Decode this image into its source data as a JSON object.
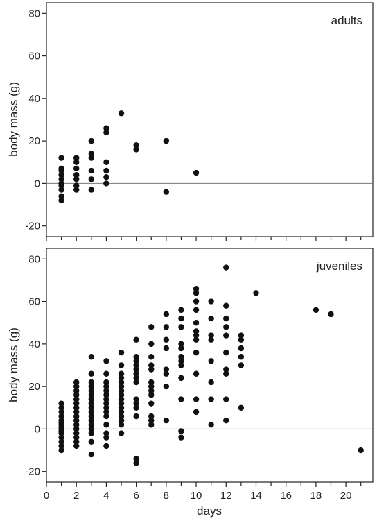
{
  "chart_data": [
    {
      "type": "scatter",
      "label": "adults",
      "ylabel": "body mass (g)",
      "xlabel": "",
      "ylim": [
        -25,
        85
      ],
      "xlim": [
        0,
        21.8
      ],
      "yticks": [
        "-20",
        "0",
        "20",
        "40",
        "60",
        "80"
      ],
      "xtick_labels_shown": false,
      "reference_line_y": 0,
      "points": [
        [
          1,
          12
        ],
        [
          1,
          7
        ],
        [
          1,
          6
        ],
        [
          1,
          4
        ],
        [
          1,
          2
        ],
        [
          1,
          0
        ],
        [
          1,
          -1
        ],
        [
          1,
          -3
        ],
        [
          1,
          -6
        ],
        [
          1,
          -8
        ],
        [
          2,
          12
        ],
        [
          2,
          10
        ],
        [
          2,
          7
        ],
        [
          2,
          4
        ],
        [
          2,
          2
        ],
        [
          2,
          -1
        ],
        [
          2,
          -3
        ],
        [
          3,
          20
        ],
        [
          3,
          14
        ],
        [
          3,
          12
        ],
        [
          3,
          6
        ],
        [
          3,
          2
        ],
        [
          3,
          -3
        ],
        [
          4,
          26
        ],
        [
          4,
          24
        ],
        [
          4,
          10
        ],
        [
          4,
          6
        ],
        [
          4,
          3
        ],
        [
          4,
          0
        ],
        [
          5,
          33
        ],
        [
          6,
          18
        ],
        [
          6,
          16
        ],
        [
          8,
          20
        ],
        [
          8,
          -4
        ],
        [
          10,
          5
        ]
      ]
    },
    {
      "type": "scatter",
      "label": "juveniles",
      "ylabel": "body mass (g)",
      "xlabel": "days",
      "ylim": [
        -25,
        85
      ],
      "xlim": [
        0,
        21.8
      ],
      "yticks": [
        "-20",
        "0",
        "20",
        "40",
        "60",
        "80"
      ],
      "xticks": [
        "0",
        "2",
        "4",
        "6",
        "8",
        "10",
        "12",
        "14",
        "16",
        "18",
        "20"
      ],
      "reference_line_y": 0,
      "points": [
        [
          1,
          12
        ],
        [
          1,
          10
        ],
        [
          1,
          8
        ],
        [
          1,
          6
        ],
        [
          1,
          4
        ],
        [
          1,
          3
        ],
        [
          1,
          2
        ],
        [
          1,
          1
        ],
        [
          1,
          0
        ],
        [
          1,
          -1
        ],
        [
          1,
          -2
        ],
        [
          1,
          -4
        ],
        [
          1,
          -6
        ],
        [
          1,
          -8
        ],
        [
          1,
          -10
        ],
        [
          2,
          22
        ],
        [
          2,
          20
        ],
        [
          2,
          18
        ],
        [
          2,
          16
        ],
        [
          2,
          14
        ],
        [
          2,
          12
        ],
        [
          2,
          10
        ],
        [
          2,
          8
        ],
        [
          2,
          6
        ],
        [
          2,
          4
        ],
        [
          2,
          2
        ],
        [
          2,
          0
        ],
        [
          2,
          -2
        ],
        [
          2,
          -4
        ],
        [
          2,
          -6
        ],
        [
          2,
          -8
        ],
        [
          3,
          34
        ],
        [
          3,
          26
        ],
        [
          3,
          22
        ],
        [
          3,
          20
        ],
        [
          3,
          18
        ],
        [
          3,
          16
        ],
        [
          3,
          14
        ],
        [
          3,
          12
        ],
        [
          3,
          10
        ],
        [
          3,
          8
        ],
        [
          3,
          6
        ],
        [
          3,
          4
        ],
        [
          3,
          2
        ],
        [
          3,
          0
        ],
        [
          3,
          -2
        ],
        [
          3,
          -6
        ],
        [
          3,
          -12
        ],
        [
          4,
          32
        ],
        [
          4,
          26
        ],
        [
          4,
          22
        ],
        [
          4,
          20
        ],
        [
          4,
          18
        ],
        [
          4,
          16
        ],
        [
          4,
          14
        ],
        [
          4,
          12
        ],
        [
          4,
          10
        ],
        [
          4,
          8
        ],
        [
          4,
          6
        ],
        [
          4,
          2
        ],
        [
          4,
          -2
        ],
        [
          4,
          -4
        ],
        [
          4,
          -8
        ],
        [
          5,
          36
        ],
        [
          5,
          30
        ],
        [
          5,
          26
        ],
        [
          5,
          24
        ],
        [
          5,
          22
        ],
        [
          5,
          20
        ],
        [
          5,
          18
        ],
        [
          5,
          16
        ],
        [
          5,
          14
        ],
        [
          5,
          12
        ],
        [
          5,
          10
        ],
        [
          5,
          8
        ],
        [
          5,
          6
        ],
        [
          5,
          4
        ],
        [
          5,
          2
        ],
        [
          5,
          -2
        ],
        [
          6,
          42
        ],
        [
          6,
          34
        ],
        [
          6,
          32
        ],
        [
          6,
          30
        ],
        [
          6,
          28
        ],
        [
          6,
          26
        ],
        [
          6,
          24
        ],
        [
          6,
          22
        ],
        [
          6,
          14
        ],
        [
          6,
          12
        ],
        [
          6,
          10
        ],
        [
          6,
          6
        ],
        [
          6,
          -14
        ],
        [
          6,
          -16
        ],
        [
          7,
          48
        ],
        [
          7,
          40
        ],
        [
          7,
          34
        ],
        [
          7,
          30
        ],
        [
          7,
          28
        ],
        [
          7,
          22
        ],
        [
          7,
          20
        ],
        [
          7,
          18
        ],
        [
          7,
          16
        ],
        [
          7,
          12
        ],
        [
          7,
          6
        ],
        [
          7,
          4
        ],
        [
          7,
          2
        ],
        [
          8,
          54
        ],
        [
          8,
          48
        ],
        [
          8,
          42
        ],
        [
          8,
          38
        ],
        [
          8,
          28
        ],
        [
          8,
          26
        ],
        [
          8,
          20
        ],
        [
          8,
          4
        ],
        [
          9,
          56
        ],
        [
          9,
          52
        ],
        [
          9,
          48
        ],
        [
          9,
          40
        ],
        [
          9,
          38
        ],
        [
          9,
          34
        ],
        [
          9,
          32
        ],
        [
          9,
          30
        ],
        [
          9,
          24
        ],
        [
          9,
          14
        ],
        [
          9,
          -1
        ],
        [
          9,
          -4
        ],
        [
          10,
          66
        ],
        [
          10,
          64
        ],
        [
          10,
          60
        ],
        [
          10,
          56
        ],
        [
          10,
          50
        ],
        [
          10,
          46
        ],
        [
          10,
          44
        ],
        [
          10,
          42
        ],
        [
          10,
          36
        ],
        [
          10,
          26
        ],
        [
          10,
          14
        ],
        [
          10,
          8
        ],
        [
          11,
          60
        ],
        [
          11,
          52
        ],
        [
          11,
          44
        ],
        [
          11,
          42
        ],
        [
          11,
          32
        ],
        [
          11,
          22
        ],
        [
          11,
          14
        ],
        [
          11,
          2
        ],
        [
          12,
          76
        ],
        [
          12,
          58
        ],
        [
          12,
          52
        ],
        [
          12,
          48
        ],
        [
          12,
          44
        ],
        [
          12,
          36
        ],
        [
          12,
          28
        ],
        [
          12,
          26
        ],
        [
          12,
          14
        ],
        [
          12,
          4
        ],
        [
          13,
          44
        ],
        [
          13,
          42
        ],
        [
          13,
          38
        ],
        [
          13,
          34
        ],
        [
          13,
          30
        ],
        [
          13,
          10
        ],
        [
          14,
          64
        ],
        [
          18,
          56
        ],
        [
          19,
          54
        ],
        [
          21,
          -10
        ]
      ]
    }
  ]
}
